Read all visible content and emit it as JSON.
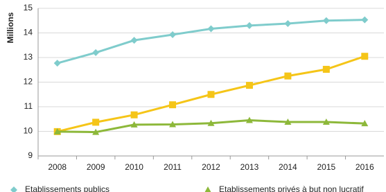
{
  "chart_data": {
    "type": "line",
    "y_label": "Millions",
    "categories": [
      "2008",
      "2009",
      "2010",
      "2011",
      "2012",
      "2013",
      "2014",
      "2015",
      "2016"
    ],
    "series": [
      {
        "name": "Etablissements publics",
        "color": "#7fcccc",
        "marker": "diamond",
        "values": [
          12.77,
          13.2,
          13.7,
          13.93,
          14.17,
          14.3,
          14.38,
          14.5,
          14.53
        ]
      },
      {
        "color": "#f5c518",
        "marker": "square",
        "values": [
          9.99,
          10.37,
          10.67,
          11.08,
          11.5,
          11.87,
          12.25,
          12.52,
          13.05
        ]
      },
      {
        "name": "Etablissements privés à but non lucratif",
        "color": "#8db83a",
        "marker": "triangle",
        "values": [
          9.99,
          9.97,
          10.27,
          10.28,
          10.33,
          10.45,
          10.38,
          10.38,
          10.32
        ]
      }
    ],
    "ylim": [
      9,
      15
    ],
    "yticks": [
      9,
      10,
      11,
      12,
      13,
      14,
      15
    ],
    "grid": true
  }
}
